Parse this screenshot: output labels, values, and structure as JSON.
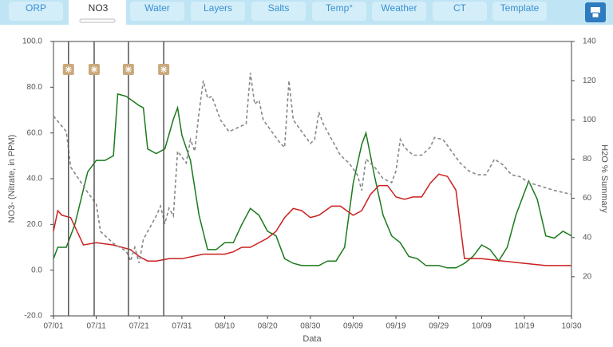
{
  "tabs": [
    "ORP",
    "NO3",
    "Water",
    "Layers",
    "Salts",
    "Temp°",
    "Weather",
    "CT",
    "Template"
  ],
  "active_tab": "NO3",
  "chart_data": {
    "type": "line",
    "ylabel": "NO3- (Nitrate, in PPM)",
    "y2label": "H2O % Summary",
    "xlabel": "Data",
    "xlim": [
      0,
      121
    ],
    "xticks": [
      {
        "value": 0,
        "label": "07/01"
      },
      {
        "value": 10,
        "label": "07/11"
      },
      {
        "value": 20,
        "label": "07/21"
      },
      {
        "value": 30,
        "label": "07/31"
      },
      {
        "value": 40,
        "label": "08/10"
      },
      {
        "value": 50,
        "label": "08/20"
      },
      {
        "value": 60,
        "label": "08/30"
      },
      {
        "value": 70,
        "label": "09/09"
      },
      {
        "value": 80,
        "label": "09/19"
      },
      {
        "value": 90,
        "label": "09/29"
      },
      {
        "value": 100,
        "label": "10/09"
      },
      {
        "value": 110,
        "label": "10/19"
      },
      {
        "value": 121,
        "label": "10/30"
      }
    ],
    "ylim": [
      -20,
      100
    ],
    "yticks": [
      {
        "value": -20,
        "label": "-20.0"
      },
      {
        "value": 0,
        "label": "0.0"
      },
      {
        "value": 20,
        "label": "20.0"
      },
      {
        "value": 40,
        "label": "40.0"
      },
      {
        "value": 60,
        "label": "60.0"
      },
      {
        "value": 80,
        "label": "80.0"
      },
      {
        "value": 100,
        "label": "100.0"
      }
    ],
    "y2lim": [
      0,
      140
    ],
    "y2ticks": [
      20,
      40,
      60,
      80,
      100,
      120,
      140
    ],
    "events": [
      3.5,
      9.5,
      17.5,
      25.75
    ],
    "series": [
      {
        "color": "#1a7a1a",
        "dashed": false,
        "x": [
          0,
          1,
          3,
          5,
          8,
          10,
          12,
          14,
          15,
          17,
          20,
          21,
          22,
          24,
          26,
          28,
          29,
          30,
          32,
          34,
          36,
          38,
          40,
          42,
          44,
          46,
          48,
          50,
          52,
          54,
          56,
          58,
          60,
          62,
          64,
          66,
          68,
          70,
          72,
          73,
          75,
          77,
          79,
          81,
          83,
          85,
          87,
          90,
          92,
          94,
          96,
          98,
          100,
          102,
          104,
          106,
          108,
          111,
          113,
          115,
          117,
          119,
          121
        ],
        "values": [
          5,
          10,
          10,
          20,
          43,
          48,
          48,
          50,
          77,
          76,
          72,
          71,
          53,
          51,
          53,
          66,
          71,
          59,
          48,
          24,
          9,
          9,
          12,
          12,
          20,
          27,
          24,
          17,
          15,
          5,
          3,
          2,
          2,
          2,
          4,
          4,
          10,
          38,
          55,
          60,
          41,
          24,
          15,
          12,
          6,
          5,
          2,
          2,
          1,
          1,
          3,
          6,
          11,
          9,
          4,
          10,
          24,
          39,
          31,
          15,
          14,
          17,
          15
        ]
      },
      {
        "color": "#cc1f1f",
        "dashed": false,
        "x": [
          0,
          1,
          2,
          4,
          7,
          10,
          14,
          18,
          20,
          22,
          24,
          27,
          30,
          35,
          40,
          42,
          44,
          46,
          50,
          52,
          54,
          56,
          58,
          60,
          62,
          65,
          67,
          70,
          72,
          74,
          76,
          78,
          80,
          82,
          84,
          86,
          88,
          90,
          92,
          94,
          96,
          100,
          105,
          110,
          115,
          121
        ],
        "values": [
          17,
          26,
          24,
          23,
          11,
          12,
          11,
          9,
          6,
          4,
          4,
          5,
          5,
          7,
          7,
          8,
          10,
          10,
          14,
          17,
          23,
          27,
          26,
          23,
          24,
          28,
          28,
          24,
          26,
          33,
          37,
          37,
          32,
          31,
          32,
          32,
          38,
          42,
          41,
          35,
          5,
          5,
          4,
          3,
          2,
          2
        ]
      },
      {
        "color": "#888888",
        "dashed": true,
        "axis": "y2",
        "x": [
          0,
          3,
          4,
          8,
          10,
          11,
          14,
          17,
          18,
          19,
          20,
          21,
          22,
          24,
          25,
          26,
          27,
          28,
          29,
          31,
          32,
          33,
          34,
          35,
          36,
          37,
          39,
          41,
          43,
          45,
          46,
          47,
          48,
          49,
          51,
          53,
          54,
          55,
          56,
          58,
          60,
          61,
          62,
          63,
          65,
          67,
          69,
          71,
          72,
          73,
          75,
          77,
          79,
          80,
          81,
          82,
          84,
          86,
          88,
          89,
          91,
          93,
          95,
          97,
          99,
          101,
          103,
          105,
          107,
          109,
          111,
          114,
          117,
          121
        ],
        "values": [
          102,
          94,
          76,
          63,
          57,
          43,
          37,
          33,
          28,
          35,
          27,
          39,
          43,
          51,
          56,
          47,
          55,
          51,
          84,
          78,
          90,
          84,
          104,
          120,
          111,
          112,
          100,
          94,
          96,
          98,
          124,
          108,
          110,
          100,
          94,
          88,
          86,
          120,
          100,
          94,
          88,
          90,
          104,
          98,
          90,
          82,
          78,
          72,
          64,
          80,
          76,
          70,
          68,
          74,
          90,
          86,
          82,
          82,
          86,
          91,
          90,
          84,
          78,
          74,
          72,
          72,
          80,
          77,
          72,
          71,
          68,
          66,
          64,
          62
        ]
      }
    ]
  }
}
